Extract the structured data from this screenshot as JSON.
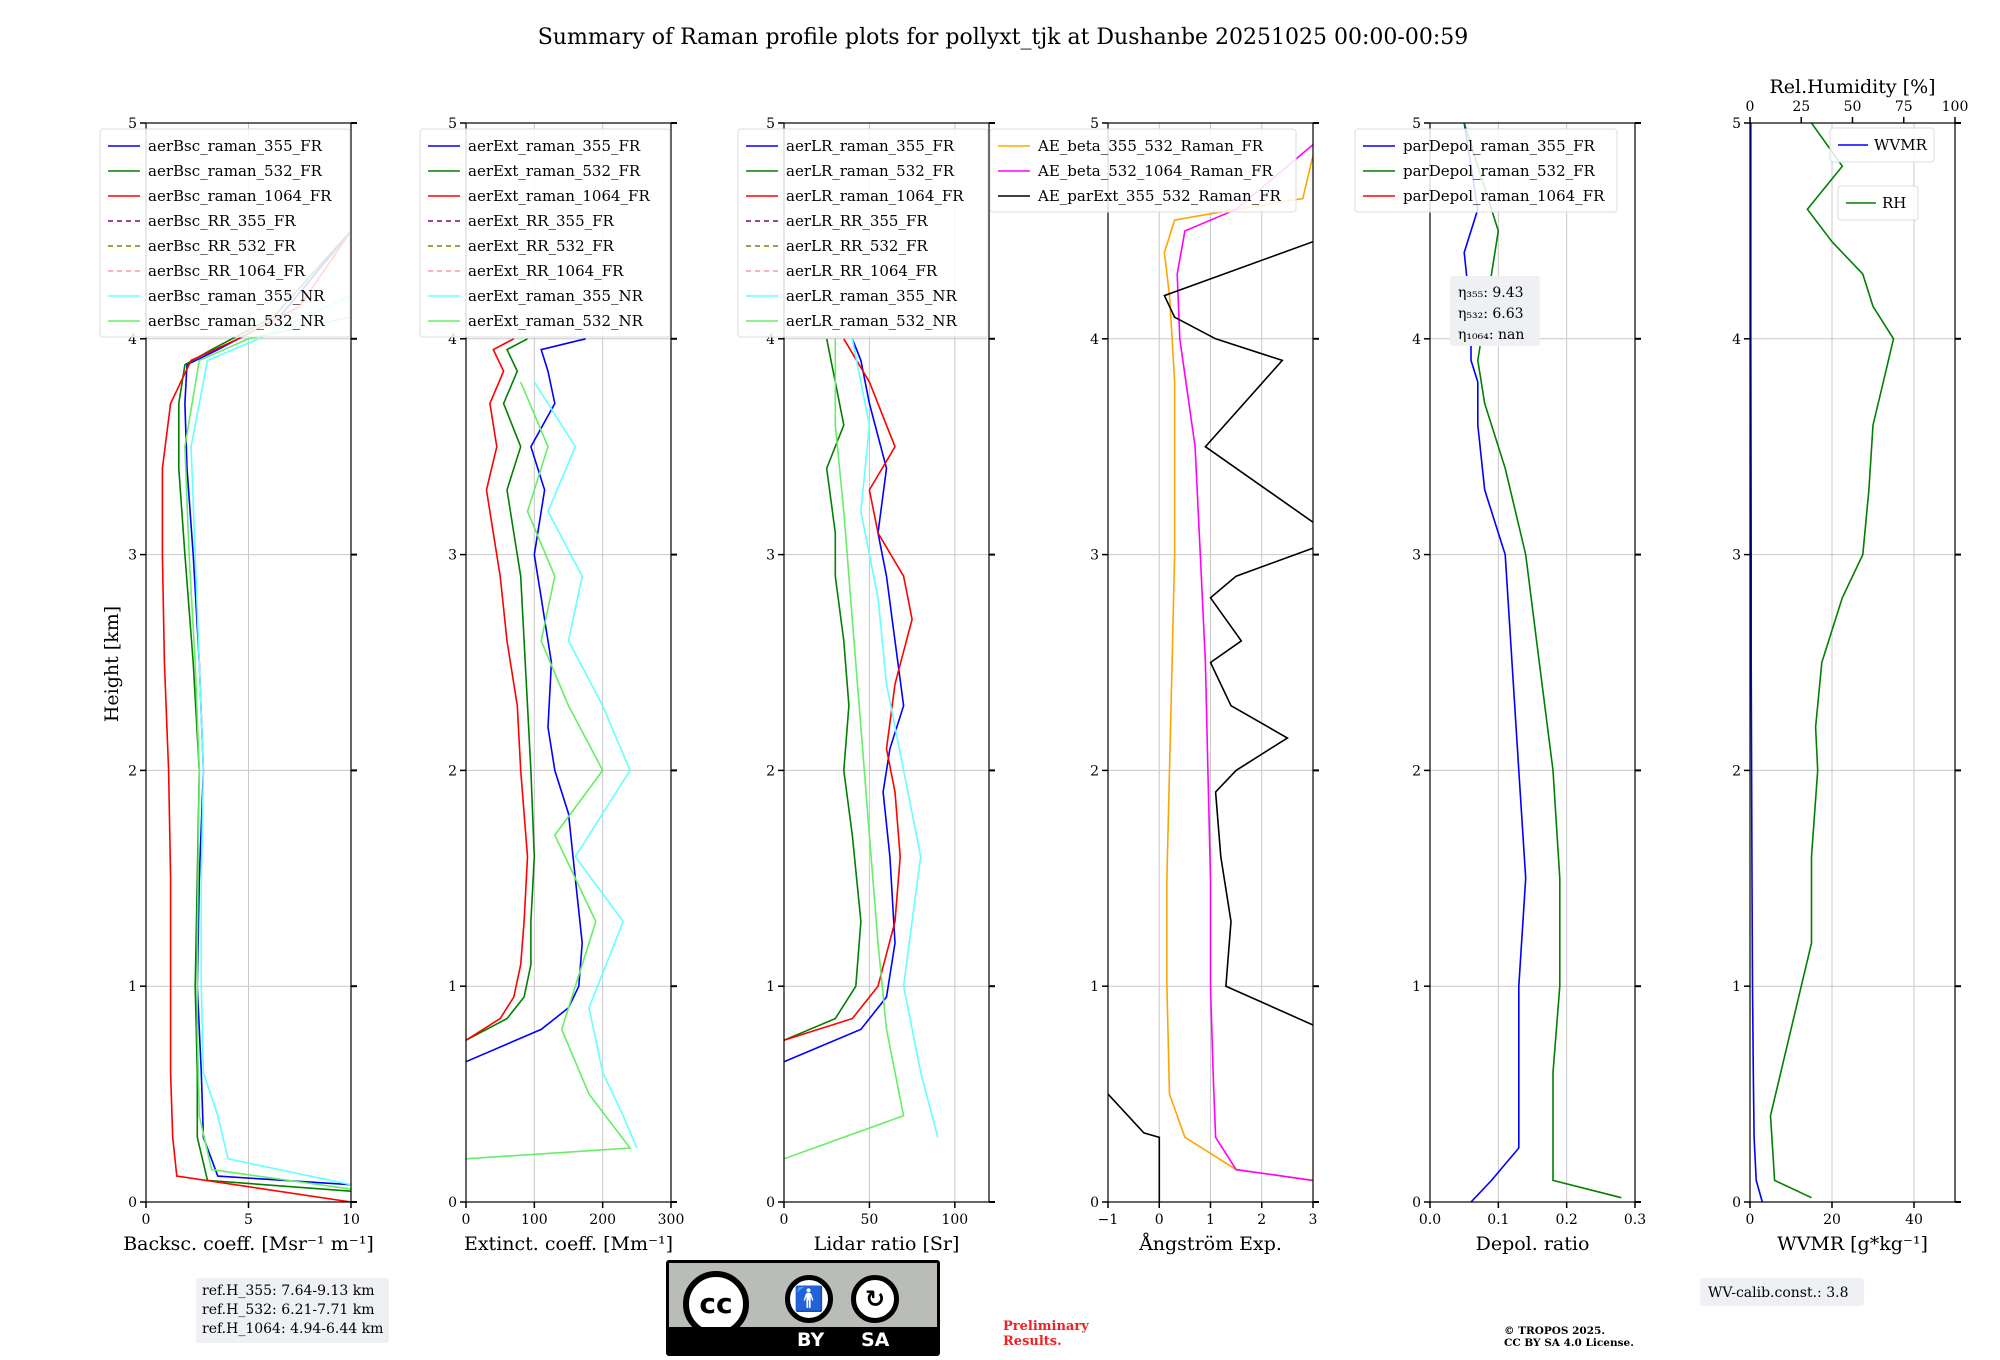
{
  "title": "Summary of Raman profile plots for pollyxt_tjk at Dushanbe 20251025 00:00-00:59",
  "height_axis": {
    "label": "Height [km]",
    "range": [
      0,
      5
    ],
    "ticks": [
      0,
      1,
      2,
      3,
      4,
      5
    ]
  },
  "colors": {
    "blue": "#0000ff",
    "green": "#008000",
    "red": "#ff0000",
    "purple": "#800080",
    "olive": "#808000",
    "salmon": "#ff9999",
    "cyan": "#66ffff",
    "lightgreen": "#66ee66",
    "orange": "#ffa500",
    "magenta": "#ff00ff",
    "black": "#000000"
  },
  "chart_data": [
    {
      "id": "bsc",
      "type": "line",
      "xlabel": "Backsc. coeff. [Msr⁻¹ m⁻¹]",
      "xlim": [
        0,
        10
      ],
      "xticks": [
        0,
        5,
        10
      ],
      "legend": [
        "aerBsc_raman_355_FR",
        "aerBsc_raman_532_FR",
        "aerBsc_raman_1064_FR",
        "aerBsc_RR_355_FR",
        "aerBsc_RR_532_FR",
        "aerBsc_RR_1064_FR",
        "aerBsc_raman_355_NR",
        "aerBsc_raman_532_NR"
      ],
      "series": [
        {
          "name": "aerBsc_raman_355_FR",
          "x": [
            10,
            3.5,
            2.8,
            2.7,
            2.5,
            2.6,
            2.8,
            2.6,
            2.3,
            2.0,
            1.9,
            2.0,
            3.5,
            6.5,
            10
          ],
          "y": [
            0.08,
            0.12,
            0.3,
            0.6,
            1.0,
            1.5,
            2.0,
            2.5,
            3.0,
            3.4,
            3.7,
            3.88,
            3.95,
            4.1,
            4.5
          ]
        },
        {
          "name": "aerBsc_raman_532_FR",
          "x": [
            10,
            3.0,
            2.5,
            2.5,
            2.4,
            2.5,
            2.6,
            2.3,
            1.9,
            1.6,
            1.6,
            1.9,
            3.2,
            6.2,
            10
          ],
          "y": [
            0.05,
            0.1,
            0.3,
            0.6,
            1.0,
            1.5,
            2.0,
            2.5,
            3.0,
            3.4,
            3.7,
            3.88,
            3.95,
            4.1,
            4.5
          ]
        },
        {
          "name": "aerBsc_raman_1064_FR",
          "x": [
            10,
            1.5,
            1.3,
            1.2,
            1.2,
            1.2,
            1.1,
            0.9,
            0.8,
            0.8,
            1.2,
            2.2,
            4.5,
            7.5,
            10
          ],
          "y": [
            0.0,
            0.12,
            0.3,
            0.6,
            1.0,
            1.5,
            2.0,
            2.5,
            3.0,
            3.4,
            3.7,
            3.9,
            4.0,
            4.15,
            4.5
          ]
        },
        {
          "name": "aerBsc_raman_355_NR",
          "x": [
            10,
            4.0,
            3.5,
            2.8,
            2.7,
            2.7,
            2.8,
            2.6,
            2.4,
            2.2,
            3.0,
            5.5,
            10
          ],
          "y": [
            0.08,
            0.2,
            0.4,
            0.6,
            1.0,
            1.5,
            2.0,
            2.5,
            3.0,
            3.5,
            3.9,
            4.0,
            4.2
          ]
        },
        {
          "name": "aerBsc_raman_532_NR",
          "x": [
            10,
            3.2,
            2.6,
            2.5,
            2.5,
            2.6,
            2.4,
            2.1,
            1.9,
            2.6,
            5.0,
            10
          ],
          "y": [
            0.06,
            0.15,
            0.4,
            0.8,
            1.2,
            2.0,
            2.5,
            3.0,
            3.5,
            3.9,
            4.0,
            4.1
          ]
        }
      ]
    },
    {
      "id": "ext",
      "type": "line",
      "xlabel": "Extinct. coeff. [Mm⁻¹]",
      "xlim": [
        0,
        300
      ],
      "xticks": [
        0,
        100,
        200,
        300
      ],
      "legend": [
        "aerExt_raman_355_FR",
        "aerExt_raman_532_FR",
        "aerExt_raman_1064_FR",
        "aerExt_RR_355_FR",
        "aerExt_RR_532_FR",
        "aerExt_RR_1064_FR",
        "aerExt_raman_355_NR",
        "aerExt_raman_532_NR"
      ],
      "series": [
        {
          "name": "aerExt_raman_355_FR",
          "x": [
            0,
            110,
            150,
            165,
            170,
            160,
            150,
            130,
            120,
            125,
            110,
            100,
            115,
            95,
            130,
            120,
            110,
            175
          ],
          "y": [
            0.65,
            0.8,
            0.9,
            1.0,
            1.2,
            1.5,
            1.8,
            2.0,
            2.2,
            2.5,
            2.8,
            3.0,
            3.3,
            3.5,
            3.7,
            3.85,
            3.95,
            4.0
          ]
        },
        {
          "name": "aerExt_raman_532_FR",
          "x": [
            0,
            60,
            85,
            95,
            95,
            100,
            95,
            90,
            85,
            80,
            70,
            60,
            80,
            55,
            75,
            60,
            90
          ],
          "y": [
            0.75,
            0.85,
            0.95,
            1.1,
            1.3,
            1.6,
            2.0,
            2.3,
            2.6,
            2.9,
            3.1,
            3.3,
            3.5,
            3.7,
            3.85,
            3.95,
            4.0
          ]
        },
        {
          "name": "aerExt_raman_1064_FR",
          "x": [
            0,
            50,
            70,
            80,
            85,
            90,
            80,
            75,
            60,
            50,
            40,
            30,
            45,
            35,
            55,
            40,
            70
          ],
          "y": [
            0.75,
            0.85,
            0.95,
            1.1,
            1.3,
            1.6,
            2.0,
            2.3,
            2.6,
            2.9,
            3.1,
            3.3,
            3.5,
            3.7,
            3.85,
            3.95,
            4.0
          ]
        },
        {
          "name": "aerExt_raman_355_NR",
          "x": [
            250,
            230,
            200,
            180,
            230,
            160,
            240,
            200,
            150,
            170,
            120,
            160,
            100
          ],
          "y": [
            0.25,
            0.4,
            0.6,
            0.9,
            1.3,
            1.6,
            2.0,
            2.3,
            2.6,
            2.9,
            3.2,
            3.5,
            3.8
          ]
        },
        {
          "name": "aerExt_raman_532_NR",
          "x": [
            0,
            240,
            180,
            140,
            190,
            130,
            200,
            150,
            110,
            130,
            90,
            120,
            80
          ],
          "y": [
            0.2,
            0.25,
            0.5,
            0.8,
            1.3,
            1.7,
            2.0,
            2.3,
            2.6,
            2.9,
            3.2,
            3.5,
            3.8
          ]
        }
      ]
    },
    {
      "id": "lr",
      "type": "line",
      "xlabel": "Lidar ratio [Sr]",
      "xlim": [
        0,
        120
      ],
      "xticks": [
        0,
        50,
        100
      ],
      "legend": [
        "aerLR_raman_355_FR",
        "aerLR_raman_532_FR",
        "aerLR_raman_1064_FR",
        "aerLR_RR_355_FR",
        "aerLR_RR_532_FR",
        "aerLR_RR_1064_FR",
        "aerLR_raman_355_NR",
        "aerLR_raman_532_NR"
      ],
      "series": [
        {
          "name": "aerLR_raman_355_FR",
          "x": [
            0,
            45,
            60,
            65,
            62,
            58,
            62,
            70,
            65,
            60,
            55,
            60,
            50,
            45,
            40
          ],
          "y": [
            0.65,
            0.8,
            0.95,
            1.2,
            1.6,
            1.9,
            2.1,
            2.3,
            2.6,
            2.9,
            3.1,
            3.4,
            3.7,
            3.9,
            4.0
          ]
        },
        {
          "name": "aerLR_raman_532_FR",
          "x": [
            0,
            30,
            42,
            45,
            40,
            35,
            38,
            35,
            30,
            30,
            25,
            35,
            30,
            25
          ],
          "y": [
            0.75,
            0.85,
            1.0,
            1.3,
            1.7,
            2.0,
            2.3,
            2.6,
            2.9,
            3.1,
            3.4,
            3.6,
            3.8,
            4.0
          ]
        },
        {
          "name": "aerLR_raman_1064_FR",
          "x": [
            0,
            40,
            55,
            65,
            68,
            65,
            60,
            65,
            75,
            70,
            55,
            50,
            65,
            50,
            35
          ],
          "y": [
            0.75,
            0.85,
            1.0,
            1.3,
            1.6,
            1.9,
            2.1,
            2.4,
            2.7,
            2.9,
            3.1,
            3.3,
            3.5,
            3.8,
            4.0
          ]
        },
        {
          "name": "aerLR_raman_355_NR",
          "x": [
            90,
            80,
            70,
            75,
            80,
            70,
            60,
            55,
            45,
            50,
            40
          ],
          "y": [
            0.3,
            0.6,
            1.0,
            1.3,
            1.6,
            2.0,
            2.4,
            2.8,
            3.2,
            3.6,
            4.0
          ]
        },
        {
          "name": "aerLR_raman_532_NR",
          "x": [
            0,
            70,
            60,
            55,
            50,
            45,
            40,
            35,
            30,
            30
          ],
          "y": [
            0.2,
            0.4,
            0.8,
            1.2,
            1.7,
            2.2,
            2.7,
            3.2,
            3.6,
            4.0
          ]
        }
      ]
    },
    {
      "id": "ae",
      "type": "line",
      "xlabel": "Ångström Exp.",
      "xlim": [
        -1,
        3
      ],
      "xticks": [
        -1,
        0,
        1,
        2,
        3
      ],
      "legend": [
        "AE_beta_355_532_Raman_FR",
        "AE_beta_532_1064_Raman_FR",
        "AE_parExt_355_532_Raman_FR"
      ],
      "series": [
        {
          "name": "AE_beta_355_532_Raman_FR",
          "x": [
            3,
            1.5,
            0.5,
            0.2,
            0.15,
            0.15,
            0.2,
            0.25,
            0.3,
            0.3,
            0.3,
            0.25,
            0.2,
            0.1,
            0.3,
            1.5,
            2.8,
            3
          ],
          "y": [
            0.1,
            0.15,
            0.3,
            0.5,
            1.0,
            1.5,
            2.0,
            2.5,
            3.0,
            3.5,
            3.8,
            4.0,
            4.2,
            4.4,
            4.55,
            4.6,
            4.65,
            4.85
          ]
        },
        {
          "name": "AE_beta_532_1064_Raman_FR",
          "x": [
            3,
            1.5,
            1.1,
            1.05,
            1.0,
            1.0,
            0.95,
            0.9,
            0.8,
            0.7,
            0.4,
            0.35,
            0.5,
            1.5,
            2.5,
            3
          ],
          "y": [
            0.1,
            0.15,
            0.3,
            0.6,
            1.0,
            1.5,
            2.0,
            2.5,
            3.0,
            3.5,
            4.0,
            4.3,
            4.5,
            4.6,
            4.8,
            4.9
          ]
        },
        {
          "name": "AE_parExt_355_532_Raman_FR",
          "x": [
            0,
            0,
            -0.3,
            -1,
            null,
            3,
            1.3,
            1.4,
            1.2,
            1.1,
            1.5,
            2.5,
            1.4,
            1.0,
            1.6,
            1.0,
            1.5,
            3,
            null,
            3,
            0.9,
            2.4,
            1.1,
            0.3,
            0.1,
            3
          ],
          "y": [
            0,
            0.3,
            0.32,
            0.5,
            null,
            0.82,
            1.0,
            1.3,
            1.6,
            1.9,
            2.0,
            2.15,
            2.3,
            2.5,
            2.6,
            2.8,
            2.9,
            3.03,
            null,
            3.15,
            3.5,
            3.9,
            4.0,
            4.1,
            4.2,
            4.45
          ]
        }
      ]
    },
    {
      "id": "depol",
      "type": "line",
      "xlabel": "Depol. ratio",
      "xlim": [
        0,
        0.3
      ],
      "xticks": [
        0.0,
        0.1,
        0.2,
        0.3
      ],
      "tick_labels": [
        "0.0",
        "0.1",
        "0.2",
        "0.3"
      ],
      "legend": [
        "parDepol_raman_355_FR",
        "parDepol_raman_532_FR",
        "parDepol_raman_1064_FR"
      ],
      "annotation": [
        "η₃₅₅: 9.43",
        "η₅₃₂: 6.63",
        "η₁₀₆₄: nan"
      ],
      "series": [
        {
          "name": "parDepol_raman_355_FR",
          "x": [
            0.06,
            0.09,
            0.13,
            0.13,
            0.13,
            0.14,
            0.13,
            0.12,
            0.11,
            0.08,
            0.07,
            0.07,
            0.06,
            0.06,
            0.05,
            0.07,
            0.05
          ],
          "y": [
            0,
            0.1,
            0.25,
            0.5,
            1.0,
            1.5,
            2.0,
            2.5,
            3.0,
            3.3,
            3.6,
            3.8,
            3.9,
            4.1,
            4.4,
            4.6,
            5.0
          ]
        },
        {
          "name": "parDepol_raman_532_FR",
          "x": [
            0.28,
            0.18,
            0.18,
            0.18,
            0.19,
            0.19,
            0.18,
            0.16,
            0.14,
            0.11,
            0.08,
            0.07,
            0.09,
            0.1,
            0.05
          ],
          "y": [
            0.02,
            0.1,
            0.3,
            0.6,
            1.0,
            1.5,
            2.0,
            2.5,
            3.0,
            3.4,
            3.7,
            3.9,
            4.3,
            4.5,
            5.0
          ]
        }
      ]
    },
    {
      "id": "wv",
      "type": "line",
      "xlabel": "WVMR [g*kg⁻¹]",
      "xlim": [
        0,
        50
      ],
      "xticks": [
        0,
        20,
        40
      ],
      "top_axis": {
        "label": "Rel.Humidity [%]",
        "ticks": [
          0,
          25,
          50,
          75,
          100
        ]
      },
      "legend": [
        "WVMR",
        "RH"
      ],
      "annotation": "WV-calib.const.: 3.8",
      "series": [
        {
          "name": "WVMR",
          "x": [
            3,
            1.5,
            1.0,
            0.8,
            0.6,
            0.5,
            0.4,
            0.3,
            0.3,
            0.2,
            0.2
          ],
          "y": [
            0,
            0.1,
            0.3,
            0.6,
            1.0,
            1.5,
            2.0,
            2.5,
            3.0,
            4.0,
            5.0
          ]
        },
        {
          "name": "RH",
          "rh_x": [
            30,
            12,
            10,
            20,
            30,
            30,
            33,
            32,
            35,
            45,
            55,
            58,
            60,
            65,
            70,
            60,
            55,
            40,
            28,
            45,
            30
          ],
          "y": [
            0.02,
            0.1,
            0.4,
            0.8,
            1.2,
            1.6,
            2.0,
            2.2,
            2.5,
            2.8,
            3.0,
            3.3,
            3.6,
            3.8,
            4.0,
            4.15,
            4.3,
            4.45,
            4.6,
            4.8,
            5.0
          ]
        }
      ]
    }
  ],
  "ref_heights": [
    "ref.H_355: 7.64-9.13 km",
    "ref.H_532: 6.21-7.71 km",
    "ref.H_1064: 4.94-6.44 km"
  ],
  "license": {
    "cc": "cc",
    "by": "BY",
    "sa": "SA"
  },
  "preliminary": [
    "Preliminary",
    "Results."
  ],
  "copyright": [
    "© TROPOS 2025.",
    "CC BY SA 4.0 License."
  ]
}
